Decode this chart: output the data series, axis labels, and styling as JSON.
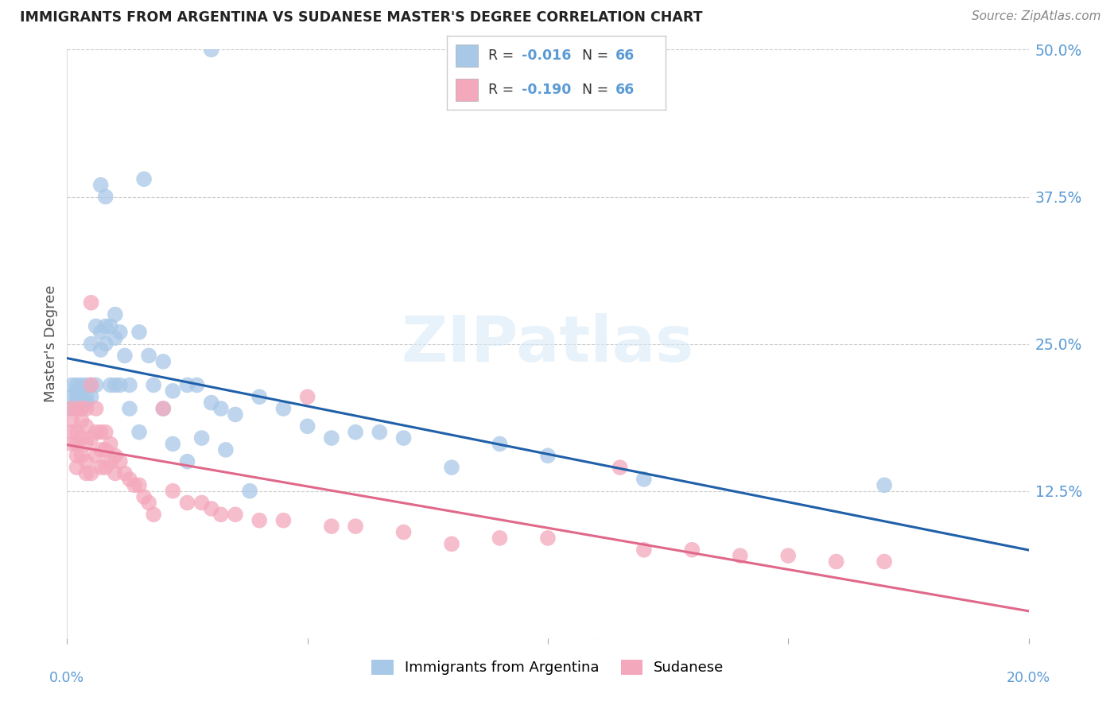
{
  "title": "IMMIGRANTS FROM ARGENTINA VS SUDANESE MASTER'S DEGREE CORRELATION CHART",
  "source": "Source: ZipAtlas.com",
  "ylabel": "Master's Degree",
  "xlim": [
    0.0,
    0.2
  ],
  "ylim": [
    0.0,
    0.5
  ],
  "ytick_positions": [
    0.0,
    0.125,
    0.25,
    0.375,
    0.5
  ],
  "ytick_labels": [
    "",
    "12.5%",
    "25.0%",
    "37.5%",
    "50.0%"
  ],
  "xtick_positions": [
    0.0,
    0.05,
    0.1,
    0.15,
    0.2
  ],
  "xtick_labels": [
    "0.0%",
    "",
    "",
    "",
    "20.0%"
  ],
  "legend_r1": "-0.016",
  "legend_n1": "66",
  "legend_r2": "-0.190",
  "legend_n2": "66",
  "color_argentina": "#a8c8e8",
  "color_sudanese": "#f4a8bc",
  "color_line_argentina": "#2060a8",
  "color_line_sudanese": "#e06888",
  "color_axis": "#5b9bd5",
  "color_title": "#222222",
  "color_source": "#888888",
  "color_grid": "#cccccc",
  "watermark_color": "#d8eaf8",
  "watermark_alpha": 0.6,
  "argentina_x": [
    0.001,
    0.001,
    0.001,
    0.002,
    0.002,
    0.002,
    0.002,
    0.003,
    0.003,
    0.003,
    0.003,
    0.004,
    0.004,
    0.004,
    0.005,
    0.005,
    0.005,
    0.006,
    0.006,
    0.007,
    0.007,
    0.008,
    0.008,
    0.009,
    0.01,
    0.01,
    0.011,
    0.012,
    0.013,
    0.015,
    0.016,
    0.017,
    0.02,
    0.022,
    0.025,
    0.027,
    0.03,
    0.032,
    0.035,
    0.04,
    0.045,
    0.05,
    0.055,
    0.06,
    0.065,
    0.07,
    0.08,
    0.09,
    0.1,
    0.12,
    0.03,
    0.007,
    0.008,
    0.009,
    0.01,
    0.011,
    0.013,
    0.015,
    0.018,
    0.02,
    0.022,
    0.025,
    0.028,
    0.033,
    0.038,
    0.17
  ],
  "argentina_y": [
    0.205,
    0.215,
    0.195,
    0.21,
    0.2,
    0.215,
    0.205,
    0.215,
    0.2,
    0.21,
    0.195,
    0.215,
    0.205,
    0.2,
    0.25,
    0.215,
    0.205,
    0.265,
    0.215,
    0.26,
    0.245,
    0.265,
    0.25,
    0.265,
    0.255,
    0.275,
    0.26,
    0.24,
    0.215,
    0.26,
    0.39,
    0.24,
    0.235,
    0.21,
    0.215,
    0.215,
    0.2,
    0.195,
    0.19,
    0.205,
    0.195,
    0.18,
    0.17,
    0.175,
    0.175,
    0.17,
    0.145,
    0.165,
    0.155,
    0.135,
    0.5,
    0.385,
    0.375,
    0.215,
    0.215,
    0.215,
    0.195,
    0.175,
    0.215,
    0.195,
    0.165,
    0.15,
    0.17,
    0.16,
    0.125,
    0.13
  ],
  "sudanese_x": [
    0.001,
    0.001,
    0.001,
    0.001,
    0.002,
    0.002,
    0.002,
    0.002,
    0.002,
    0.003,
    0.003,
    0.003,
    0.003,
    0.004,
    0.004,
    0.004,
    0.004,
    0.004,
    0.005,
    0.005,
    0.005,
    0.005,
    0.006,
    0.006,
    0.006,
    0.007,
    0.007,
    0.007,
    0.008,
    0.008,
    0.008,
    0.009,
    0.009,
    0.01,
    0.01,
    0.011,
    0.012,
    0.013,
    0.014,
    0.015,
    0.016,
    0.017,
    0.018,
    0.02,
    0.022,
    0.025,
    0.028,
    0.03,
    0.032,
    0.035,
    0.04,
    0.045,
    0.05,
    0.055,
    0.06,
    0.07,
    0.08,
    0.09,
    0.1,
    0.115,
    0.12,
    0.13,
    0.14,
    0.15,
    0.16,
    0.17
  ],
  "sudanese_y": [
    0.195,
    0.185,
    0.175,
    0.165,
    0.195,
    0.175,
    0.165,
    0.155,
    0.145,
    0.195,
    0.185,
    0.17,
    0.155,
    0.195,
    0.18,
    0.165,
    0.15,
    0.14,
    0.285,
    0.215,
    0.17,
    0.14,
    0.195,
    0.175,
    0.155,
    0.175,
    0.16,
    0.145,
    0.175,
    0.16,
    0.145,
    0.165,
    0.15,
    0.155,
    0.14,
    0.15,
    0.14,
    0.135,
    0.13,
    0.13,
    0.12,
    0.115,
    0.105,
    0.195,
    0.125,
    0.115,
    0.115,
    0.11,
    0.105,
    0.105,
    0.1,
    0.1,
    0.205,
    0.095,
    0.095,
    0.09,
    0.08,
    0.085,
    0.085,
    0.145,
    0.075,
    0.075,
    0.07,
    0.07,
    0.065,
    0.065
  ]
}
